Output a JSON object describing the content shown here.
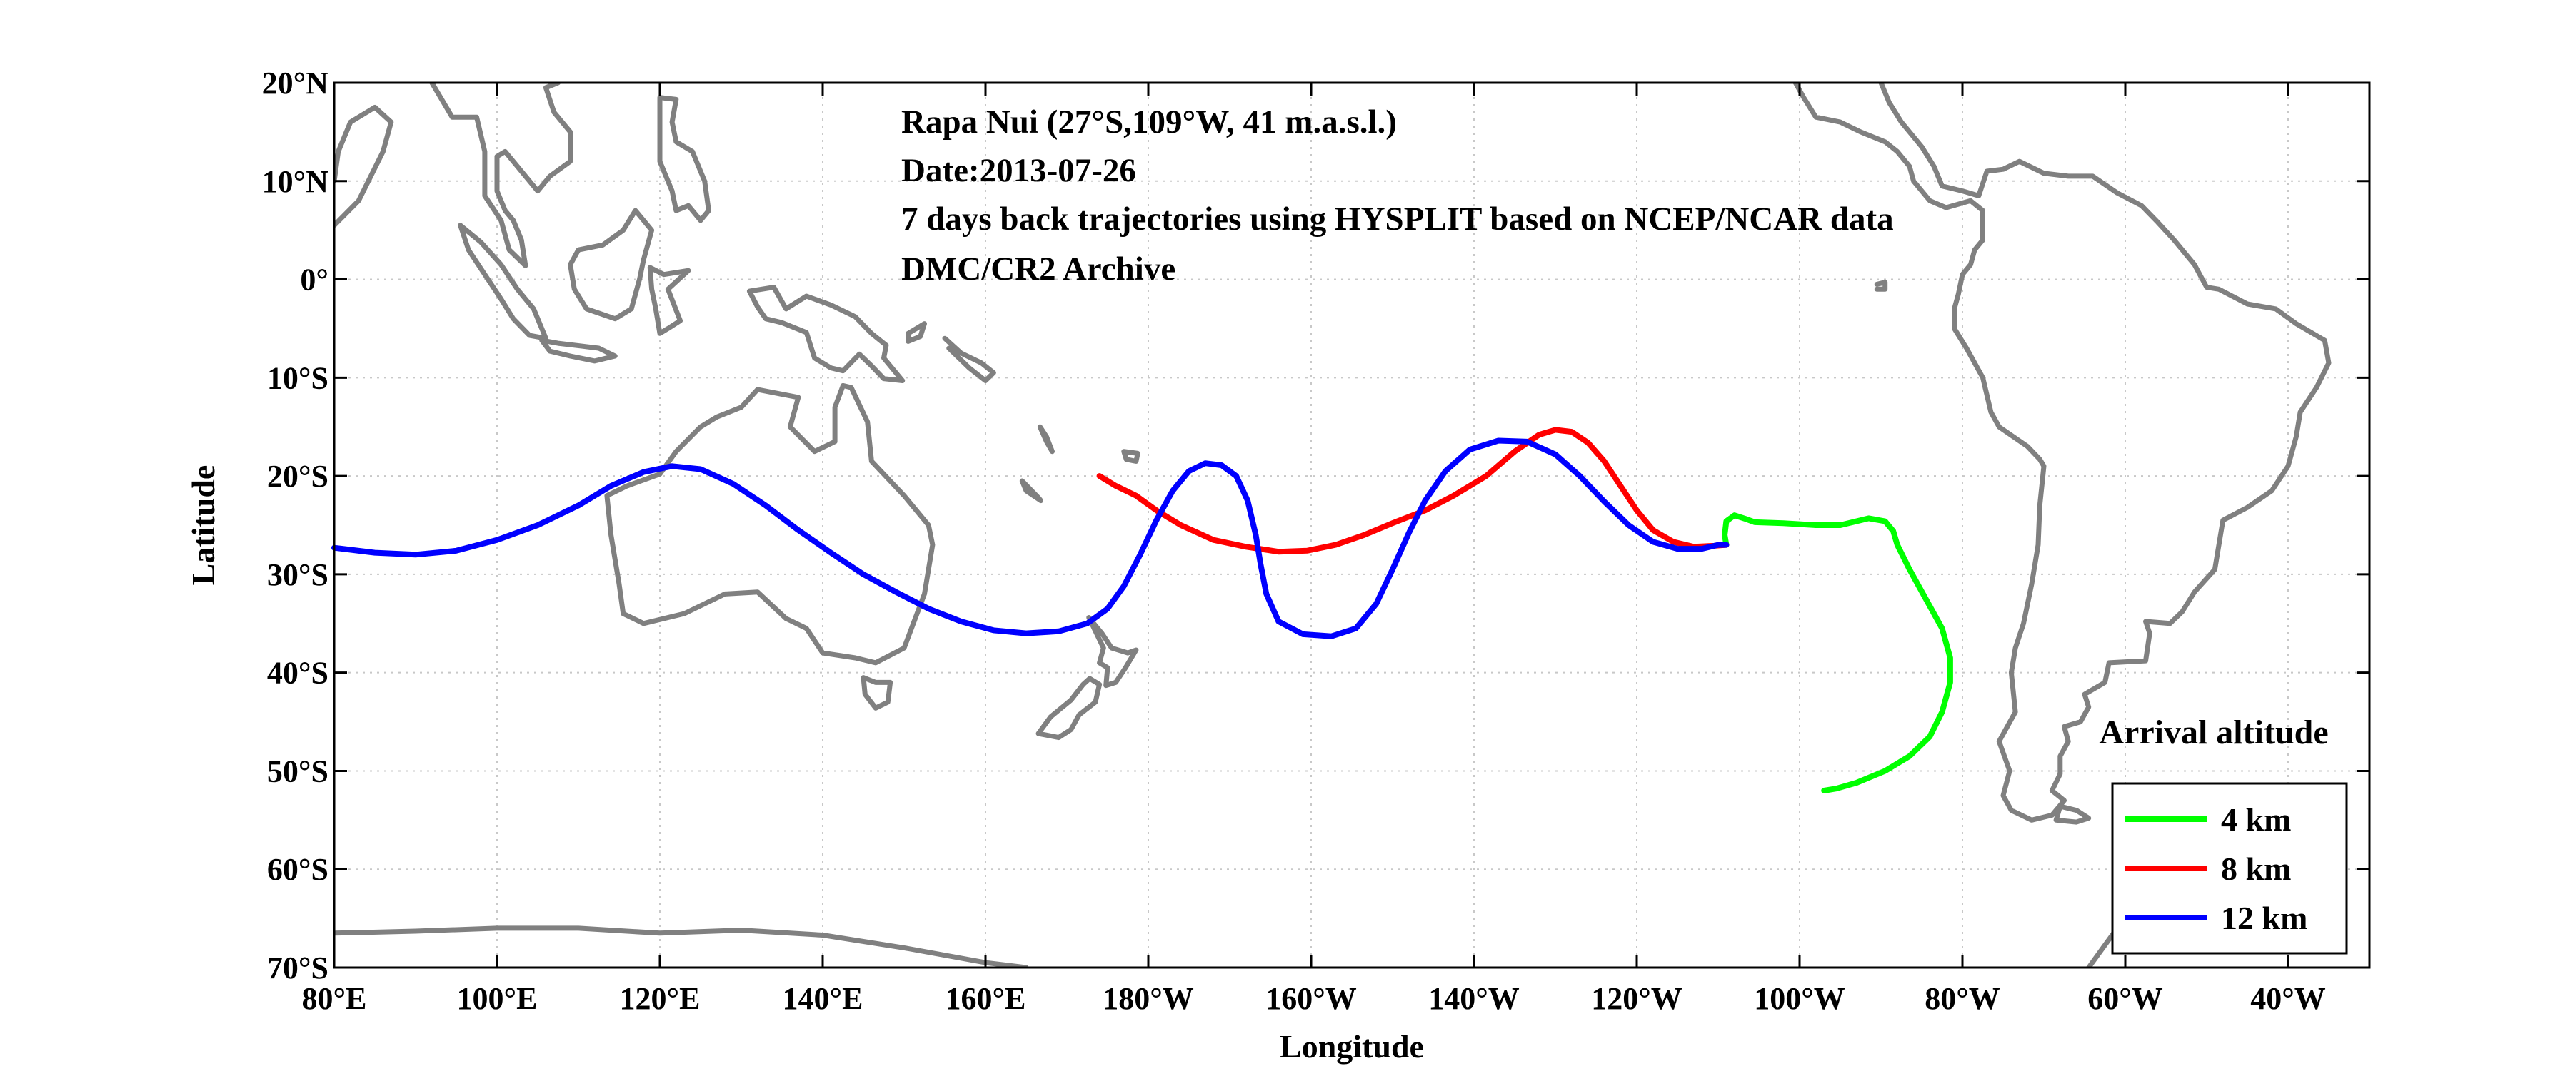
{
  "chart_data": {
    "type": "line",
    "title": "",
    "annotations": [
      "Rapa Nui (27°S,109°W, 41 m.a.s.l.)",
      "Date:2013-07-26",
      "7 days back trajectories using HYSPLIT based on NCEP/NCAR data",
      "DMC/CR2 Archive"
    ],
    "xlabel": "Longitude",
    "ylabel": "Latitude",
    "xlim": [
      80,
      330
    ],
    "ylim": [
      -70,
      20
    ],
    "x_units": "degrees east (0–360)",
    "grid": true,
    "xticks": [
      {
        "value": 80,
        "label": "80°E"
      },
      {
        "value": 100,
        "label": "100°E"
      },
      {
        "value": 120,
        "label": "120°E"
      },
      {
        "value": 140,
        "label": "140°E"
      },
      {
        "value": 160,
        "label": "160°E"
      },
      {
        "value": 180,
        "label": "180°W"
      },
      {
        "value": 200,
        "label": "160°W"
      },
      {
        "value": 220,
        "label": "140°W"
      },
      {
        "value": 240,
        "label": "120°W"
      },
      {
        "value": 260,
        "label": "100°W"
      },
      {
        "value": 280,
        "label": "80°W"
      },
      {
        "value": 300,
        "label": "60°W"
      },
      {
        "value": 320,
        "label": "40°W"
      }
    ],
    "yticks": [
      {
        "value": 20,
        "label": "20°N"
      },
      {
        "value": 10,
        "label": "10°N"
      },
      {
        "value": 0,
        "label": "0°"
      },
      {
        "value": -10,
        "label": "10°S"
      },
      {
        "value": -20,
        "label": "20°S"
      },
      {
        "value": -30,
        "label": "30°S"
      },
      {
        "value": -40,
        "label": "40°S"
      },
      {
        "value": -50,
        "label": "50°S"
      },
      {
        "value": -60,
        "label": "60°S"
      },
      {
        "value": -70,
        "label": "70°S"
      }
    ],
    "legend": {
      "title": "Arrival altitude",
      "placement": "lower-right"
    },
    "series": [
      {
        "name": "4 km",
        "color": "#00ff00",
        "points": [
          [
            251,
            -27.0
          ],
          [
            250.8,
            -26.0
          ],
          [
            251.0,
            -24.6
          ],
          [
            252.0,
            -24.0
          ],
          [
            253.5,
            -24.4
          ],
          [
            254.5,
            -24.7
          ],
          [
            258,
            -24.8
          ],
          [
            262,
            -25.0
          ],
          [
            265,
            -25.0
          ],
          [
            267,
            -24.6
          ],
          [
            268.5,
            -24.3
          ],
          [
            270.5,
            -24.6
          ],
          [
            271.5,
            -25.6
          ],
          [
            272,
            -27.0
          ],
          [
            273.5,
            -29.5
          ],
          [
            275.5,
            -32.5
          ],
          [
            277.5,
            -35.5
          ],
          [
            278.5,
            -38.5
          ],
          [
            278.5,
            -41.0
          ],
          [
            277.5,
            -44.0
          ],
          [
            276,
            -46.5
          ],
          [
            273.5,
            -48.5
          ],
          [
            270.5,
            -50.0
          ],
          [
            267,
            -51.2
          ],
          [
            264.5,
            -51.8
          ],
          [
            263,
            -52.0
          ]
        ]
      },
      {
        "name": "8 km",
        "color": "#ff0000",
        "points": [
          [
            174,
            -20.0
          ],
          [
            176,
            -21.0
          ],
          [
            178.5,
            -22.0
          ],
          [
            181,
            -23.5
          ],
          [
            184,
            -25.0
          ],
          [
            188,
            -26.5
          ],
          [
            192,
            -27.2
          ],
          [
            196,
            -27.7
          ],
          [
            199.5,
            -27.6
          ],
          [
            203,
            -27.0
          ],
          [
            206.5,
            -26.0
          ],
          [
            210,
            -24.8
          ],
          [
            214,
            -23.5
          ],
          [
            217.5,
            -22.0
          ],
          [
            221.5,
            -20.0
          ],
          [
            225,
            -17.5
          ],
          [
            228,
            -15.8
          ],
          [
            230,
            -15.3
          ],
          [
            232,
            -15.5
          ],
          [
            234,
            -16.6
          ],
          [
            236,
            -18.5
          ],
          [
            238,
            -21.0
          ],
          [
            240,
            -23.5
          ],
          [
            242,
            -25.5
          ],
          [
            244.5,
            -26.7
          ],
          [
            247,
            -27.2
          ],
          [
            249.5,
            -27.1
          ],
          [
            251,
            -27.0
          ]
        ]
      },
      {
        "name": "12 km",
        "color": "#0000ff",
        "points": [
          [
            80,
            -27.3
          ],
          [
            85,
            -27.8
          ],
          [
            90,
            -28.0
          ],
          [
            95,
            -27.6
          ],
          [
            100,
            -26.5
          ],
          [
            105,
            -25.0
          ],
          [
            110,
            -23.0
          ],
          [
            114,
            -21.0
          ],
          [
            118,
            -19.6
          ],
          [
            121.5,
            -19.0
          ],
          [
            125,
            -19.3
          ],
          [
            129,
            -20.8
          ],
          [
            133,
            -23.0
          ],
          [
            137,
            -25.5
          ],
          [
            141,
            -27.8
          ],
          [
            145,
            -30.0
          ],
          [
            149,
            -31.8
          ],
          [
            153,
            -33.5
          ],
          [
            157,
            -34.8
          ],
          [
            161,
            -35.7
          ],
          [
            165,
            -36.0
          ],
          [
            169,
            -35.8
          ],
          [
            172.5,
            -35.0
          ],
          [
            175,
            -33.5
          ],
          [
            177,
            -31.2
          ],
          [
            179,
            -28.0
          ],
          [
            181,
            -24.5
          ],
          [
            183,
            -21.5
          ],
          [
            185,
            -19.5
          ],
          [
            187,
            -18.7
          ],
          [
            189,
            -18.9
          ],
          [
            190.8,
            -20.0
          ],
          [
            192.2,
            -22.5
          ],
          [
            193.2,
            -26.0
          ],
          [
            193.8,
            -29.0
          ],
          [
            194.5,
            -32.0
          ],
          [
            196,
            -34.8
          ],
          [
            199,
            -36.1
          ],
          [
            202.5,
            -36.3
          ],
          [
            205.5,
            -35.5
          ],
          [
            208,
            -33.0
          ],
          [
            210,
            -29.5
          ],
          [
            212,
            -25.8
          ],
          [
            214,
            -22.5
          ],
          [
            216.5,
            -19.5
          ],
          [
            219.5,
            -17.3
          ],
          [
            223,
            -16.4
          ],
          [
            226.5,
            -16.5
          ],
          [
            230,
            -17.8
          ],
          [
            233,
            -20.0
          ],
          [
            236,
            -22.6
          ],
          [
            239,
            -25.0
          ],
          [
            242,
            -26.7
          ],
          [
            245,
            -27.4
          ],
          [
            248,
            -27.4
          ],
          [
            250,
            -27.0
          ],
          [
            251,
            -27.0
          ]
        ]
      }
    ]
  }
}
